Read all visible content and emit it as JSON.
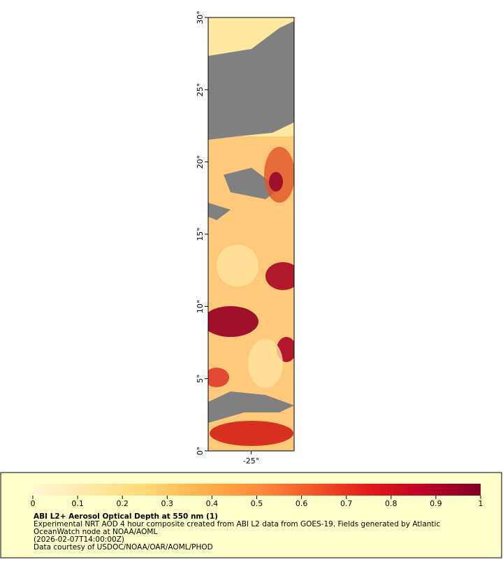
{
  "map": {
    "lat_ticks": [
      {
        "value": 0,
        "label": "0°"
      },
      {
        "value": 5,
        "label": "5°"
      },
      {
        "value": 10,
        "label": "10°"
      },
      {
        "value": 15,
        "label": "15°"
      },
      {
        "value": 20,
        "label": "20°"
      },
      {
        "value": 25,
        "label": "25°"
      },
      {
        "value": 30,
        "label": "30°"
      }
    ],
    "lon_ticks": [
      {
        "value": -25,
        "label": "-25°"
      }
    ],
    "latlim": [
      0,
      30
    ],
    "lonlim": [
      -28,
      -22
    ]
  },
  "colorbar": {
    "ticks": [
      0,
      0.1,
      0.2,
      0.3,
      0.4,
      0.5,
      0.6,
      0.7,
      0.8,
      0.9,
      1
    ],
    "lim": [
      0,
      1
    ],
    "colormap": [
      "#fff6d5",
      "#ffe9a8",
      "#fed976",
      "#feb24c",
      "#fd8d3c",
      "#f4572a",
      "#e31a1c",
      "#bd0026",
      "#800026"
    ]
  },
  "legend": {
    "title": "ABI L2+ Aerosol Optical Depth at 550 nm (1)",
    "lines": [
      "Experimental NRT AOD 4 hour composite created from ABI L2 data from GOES-19. Fields generated by Atlantic",
      "OceanWatch node at NOAA/AOML",
      "(2026-02-07T14:00:00Z)",
      "Data courtesy of USDOC/NOAA/OAR/AOML/PHOD"
    ]
  }
}
